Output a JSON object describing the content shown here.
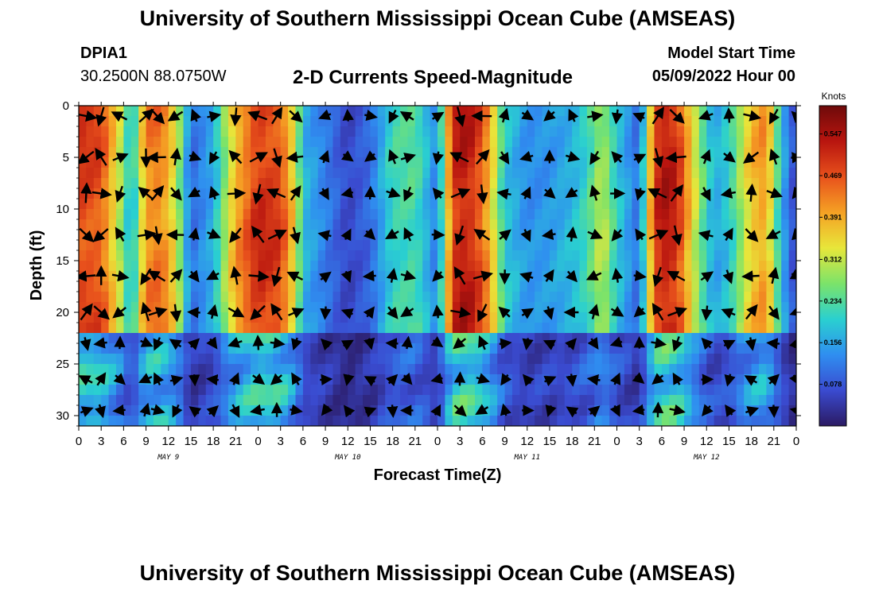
{
  "header": {
    "title": "University of Southern Mississippi Ocean Cube (AMSEAS)",
    "station_id": "DPIA1",
    "station_coords": "30.2500N  88.0750W",
    "plot_title": "2-D Currents Speed-Magnitude",
    "model_start_label": "Model Start Time",
    "model_start_value": "05/09/2022 Hour 00"
  },
  "footer": {
    "title": "University of Southern Mississippi Ocean Cube (AMSEAS)"
  },
  "chart_data": {
    "type": "heatmap",
    "title": "2-D Currents Speed-Magnitude",
    "xlabel": "Forecast Time(Z)",
    "ylabel": "Depth (ft)",
    "x_range_hours": [
      0,
      96
    ],
    "ylim": [
      0,
      31
    ],
    "y_inverted": true,
    "x_tick_labels": [
      "0",
      "3",
      "6",
      "9",
      "12",
      "15",
      "18",
      "21",
      "0",
      "3",
      "6",
      "9",
      "12",
      "15",
      "18",
      "21",
      "0",
      "3",
      "6",
      "9",
      "12",
      "15",
      "18",
      "21",
      "0",
      "3",
      "6",
      "9",
      "12",
      "15",
      "18",
      "21",
      "0"
    ],
    "y_ticks": [
      0,
      5,
      10,
      15,
      20,
      25,
      30
    ],
    "day_labels": [
      {
        "label": "MAY 9",
        "hour": 12
      },
      {
        "label": "MAY 10",
        "hour": 36
      },
      {
        "label": "MAY 11",
        "hour": 60
      },
      {
        "label": "MAY 12",
        "hour": 84
      }
    ],
    "colorbar": {
      "title": "Knots",
      "ticks": [
        "0.547",
        "0.469",
        "0.391",
        "0.312",
        "0.234",
        "0.156",
        "0.078"
      ],
      "tick_values": [
        0.547,
        0.469,
        0.391,
        0.312,
        0.234,
        0.156,
        0.078
      ],
      "range": [
        0,
        0.6
      ],
      "colors": [
        "#2b1a63",
        "#3a4bd0",
        "#2f8ef0",
        "#2ad0d0",
        "#7be36a",
        "#e8e63a",
        "#f5a124",
        "#e8511c",
        "#b8150f",
        "#6e0a0a"
      ]
    },
    "speed_profile_hours": [
      0,
      3,
      6,
      7,
      9,
      11,
      13,
      15,
      18,
      21,
      24,
      27,
      29,
      30,
      33,
      36,
      39,
      42,
      45,
      48,
      50,
      51,
      53,
      55,
      57,
      60,
      63,
      66,
      68,
      70,
      72,
      75,
      77,
      78,
      80,
      83,
      85,
      87,
      90,
      92,
      94,
      96
    ],
    "speed_profile_knots": [
      0.5,
      0.48,
      0.28,
      0.16,
      0.43,
      0.45,
      0.34,
      0.1,
      0.17,
      0.4,
      0.52,
      0.49,
      0.34,
      0.18,
      0.12,
      0.06,
      0.1,
      0.22,
      0.24,
      0.12,
      0.5,
      0.55,
      0.52,
      0.4,
      0.2,
      0.14,
      0.15,
      0.18,
      0.22,
      0.32,
      0.2,
      0.1,
      0.48,
      0.55,
      0.52,
      0.28,
      0.16,
      0.2,
      0.38,
      0.42,
      0.18,
      0.05
    ],
    "vector_columns_hours": [
      1,
      3,
      5.5,
      9,
      10.5,
      13,
      15.5,
      18,
      21,
      24,
      26.5,
      29,
      33,
      36,
      39,
      42,
      44,
      48,
      51,
      54,
      57,
      60,
      63,
      66,
      69,
      72,
      75,
      77.5,
      80,
      84,
      87,
      90,
      93,
      96
    ],
    "vector_rows_depth": [
      1,
      5,
      8.5,
      12.5,
      16.5,
      20,
      23,
      26.5,
      29.5
    ]
  }
}
